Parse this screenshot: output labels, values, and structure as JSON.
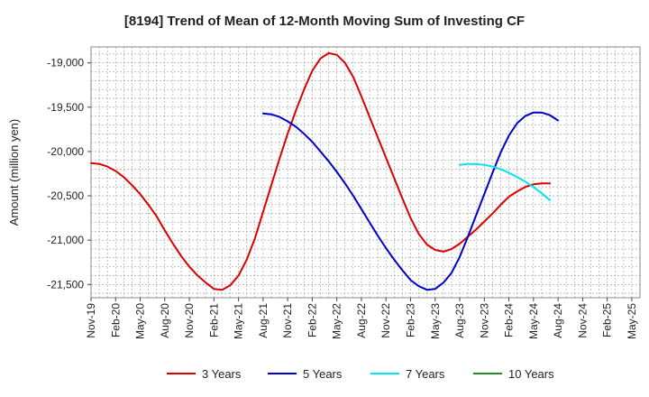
{
  "chart_data": {
    "type": "line",
    "title": "[8194]  Trend of Mean of 12-Month Moving Sum of Investing CF",
    "xlabel": "",
    "ylabel": "Amount (million yen)",
    "ylim": [
      -21650,
      -18820
    ],
    "yticks": [
      -19000,
      -19500,
      -20000,
      -20500,
      -21000,
      -21500
    ],
    "ytick_labels": [
      "-19,000",
      "-19,500",
      "-20,000",
      "-20,500",
      "-21,000",
      "-21,500"
    ],
    "x_start": "Nov-19",
    "x_months": 67,
    "xtick_labels": [
      "Nov-19",
      "Feb-20",
      "May-20",
      "Aug-20",
      "Nov-20",
      "Feb-21",
      "May-21",
      "Aug-21",
      "Nov-21",
      "Feb-22",
      "May-22",
      "Aug-22",
      "Nov-22",
      "Feb-23",
      "May-23",
      "Aug-23",
      "Nov-23",
      "Feb-24",
      "May-24",
      "Aug-24",
      "Nov-24",
      "Feb-25",
      "May-25"
    ],
    "grid": true,
    "legend_position": "bottom",
    "series": [
      {
        "name": "3 Years",
        "color": "#dd0000",
        "start_index": 0,
        "values": [
          -20130,
          -20140,
          -20170,
          -20220,
          -20290,
          -20380,
          -20480,
          -20600,
          -20730,
          -20890,
          -21040,
          -21180,
          -21300,
          -21400,
          -21480,
          -21550,
          -21560,
          -21510,
          -21400,
          -21220,
          -20980,
          -20680,
          -20380,
          -20080,
          -19800,
          -19540,
          -19300,
          -19090,
          -18950,
          -18890,
          -18910,
          -19000,
          -19160,
          -19380,
          -19610,
          -19840,
          -20070,
          -20300,
          -20530,
          -20750,
          -20930,
          -21050,
          -21110,
          -21130,
          -21100,
          -21040,
          -20960,
          -20880,
          -20790,
          -20700,
          -20600,
          -20510,
          -20450,
          -20400,
          -20370,
          -20360,
          -20360
        ]
      },
      {
        "name": "5 Years",
        "color": "#0000cc",
        "start_index": 21,
        "values": [
          -19570,
          -19580,
          -19610,
          -19660,
          -19720,
          -19800,
          -19890,
          -20000,
          -20110,
          -20230,
          -20360,
          -20500,
          -20650,
          -20800,
          -20950,
          -21090,
          -21220,
          -21340,
          -21450,
          -21520,
          -21560,
          -21550,
          -21480,
          -21370,
          -21190,
          -20960,
          -20720,
          -20480,
          -20240,
          -20010,
          -19820,
          -19680,
          -19600,
          -19560,
          -19560,
          -19590,
          -19650
        ]
      },
      {
        "name": "7 Years",
        "color": "#00e5ee",
        "start_index": 45,
        "values": [
          -20150,
          -20140,
          -20140,
          -20150,
          -20170,
          -20200,
          -20240,
          -20290,
          -20340,
          -20400,
          -20470,
          -20550
        ]
      },
      {
        "name": "10 Years",
        "color": "#228b22",
        "start_index": 0,
        "values": []
      }
    ]
  }
}
